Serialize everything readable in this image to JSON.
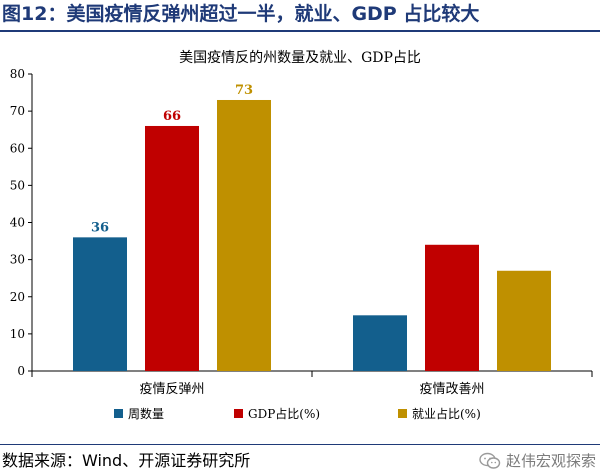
{
  "figure_title": "图12：美国疫情反弹州超过一半，就业、GDP 占比较大",
  "source_text": "数据来源：Wind、开源证券研究所",
  "watermark": {
    "text": "赵伟宏观探索",
    "icon": "wechat-icon"
  },
  "colors": {
    "title": "#1f3a78",
    "series": [
      "#135f8d",
      "#c00000",
      "#bf9000"
    ]
  },
  "chart_data": {
    "type": "bar",
    "title": "美国疫情反的州数量及就业、GDP占比",
    "categories": [
      "疫情反弹州",
      "疫情改善州"
    ],
    "series": [
      {
        "name": "周数量",
        "values": [
          36,
          15
        ]
      },
      {
        "name": "GDP占比(%)",
        "values": [
          66,
          34
        ]
      },
      {
        "name": "就业占比(%)",
        "values": [
          73,
          27
        ]
      }
    ],
    "data_labels": [
      "36",
      "66",
      "73"
    ],
    "ylim": [
      0,
      80
    ],
    "yticks": [
      "0",
      "10",
      "20",
      "30",
      "40",
      "50",
      "60",
      "70",
      "80"
    ],
    "grid": false,
    "legend_position": "bottom"
  }
}
